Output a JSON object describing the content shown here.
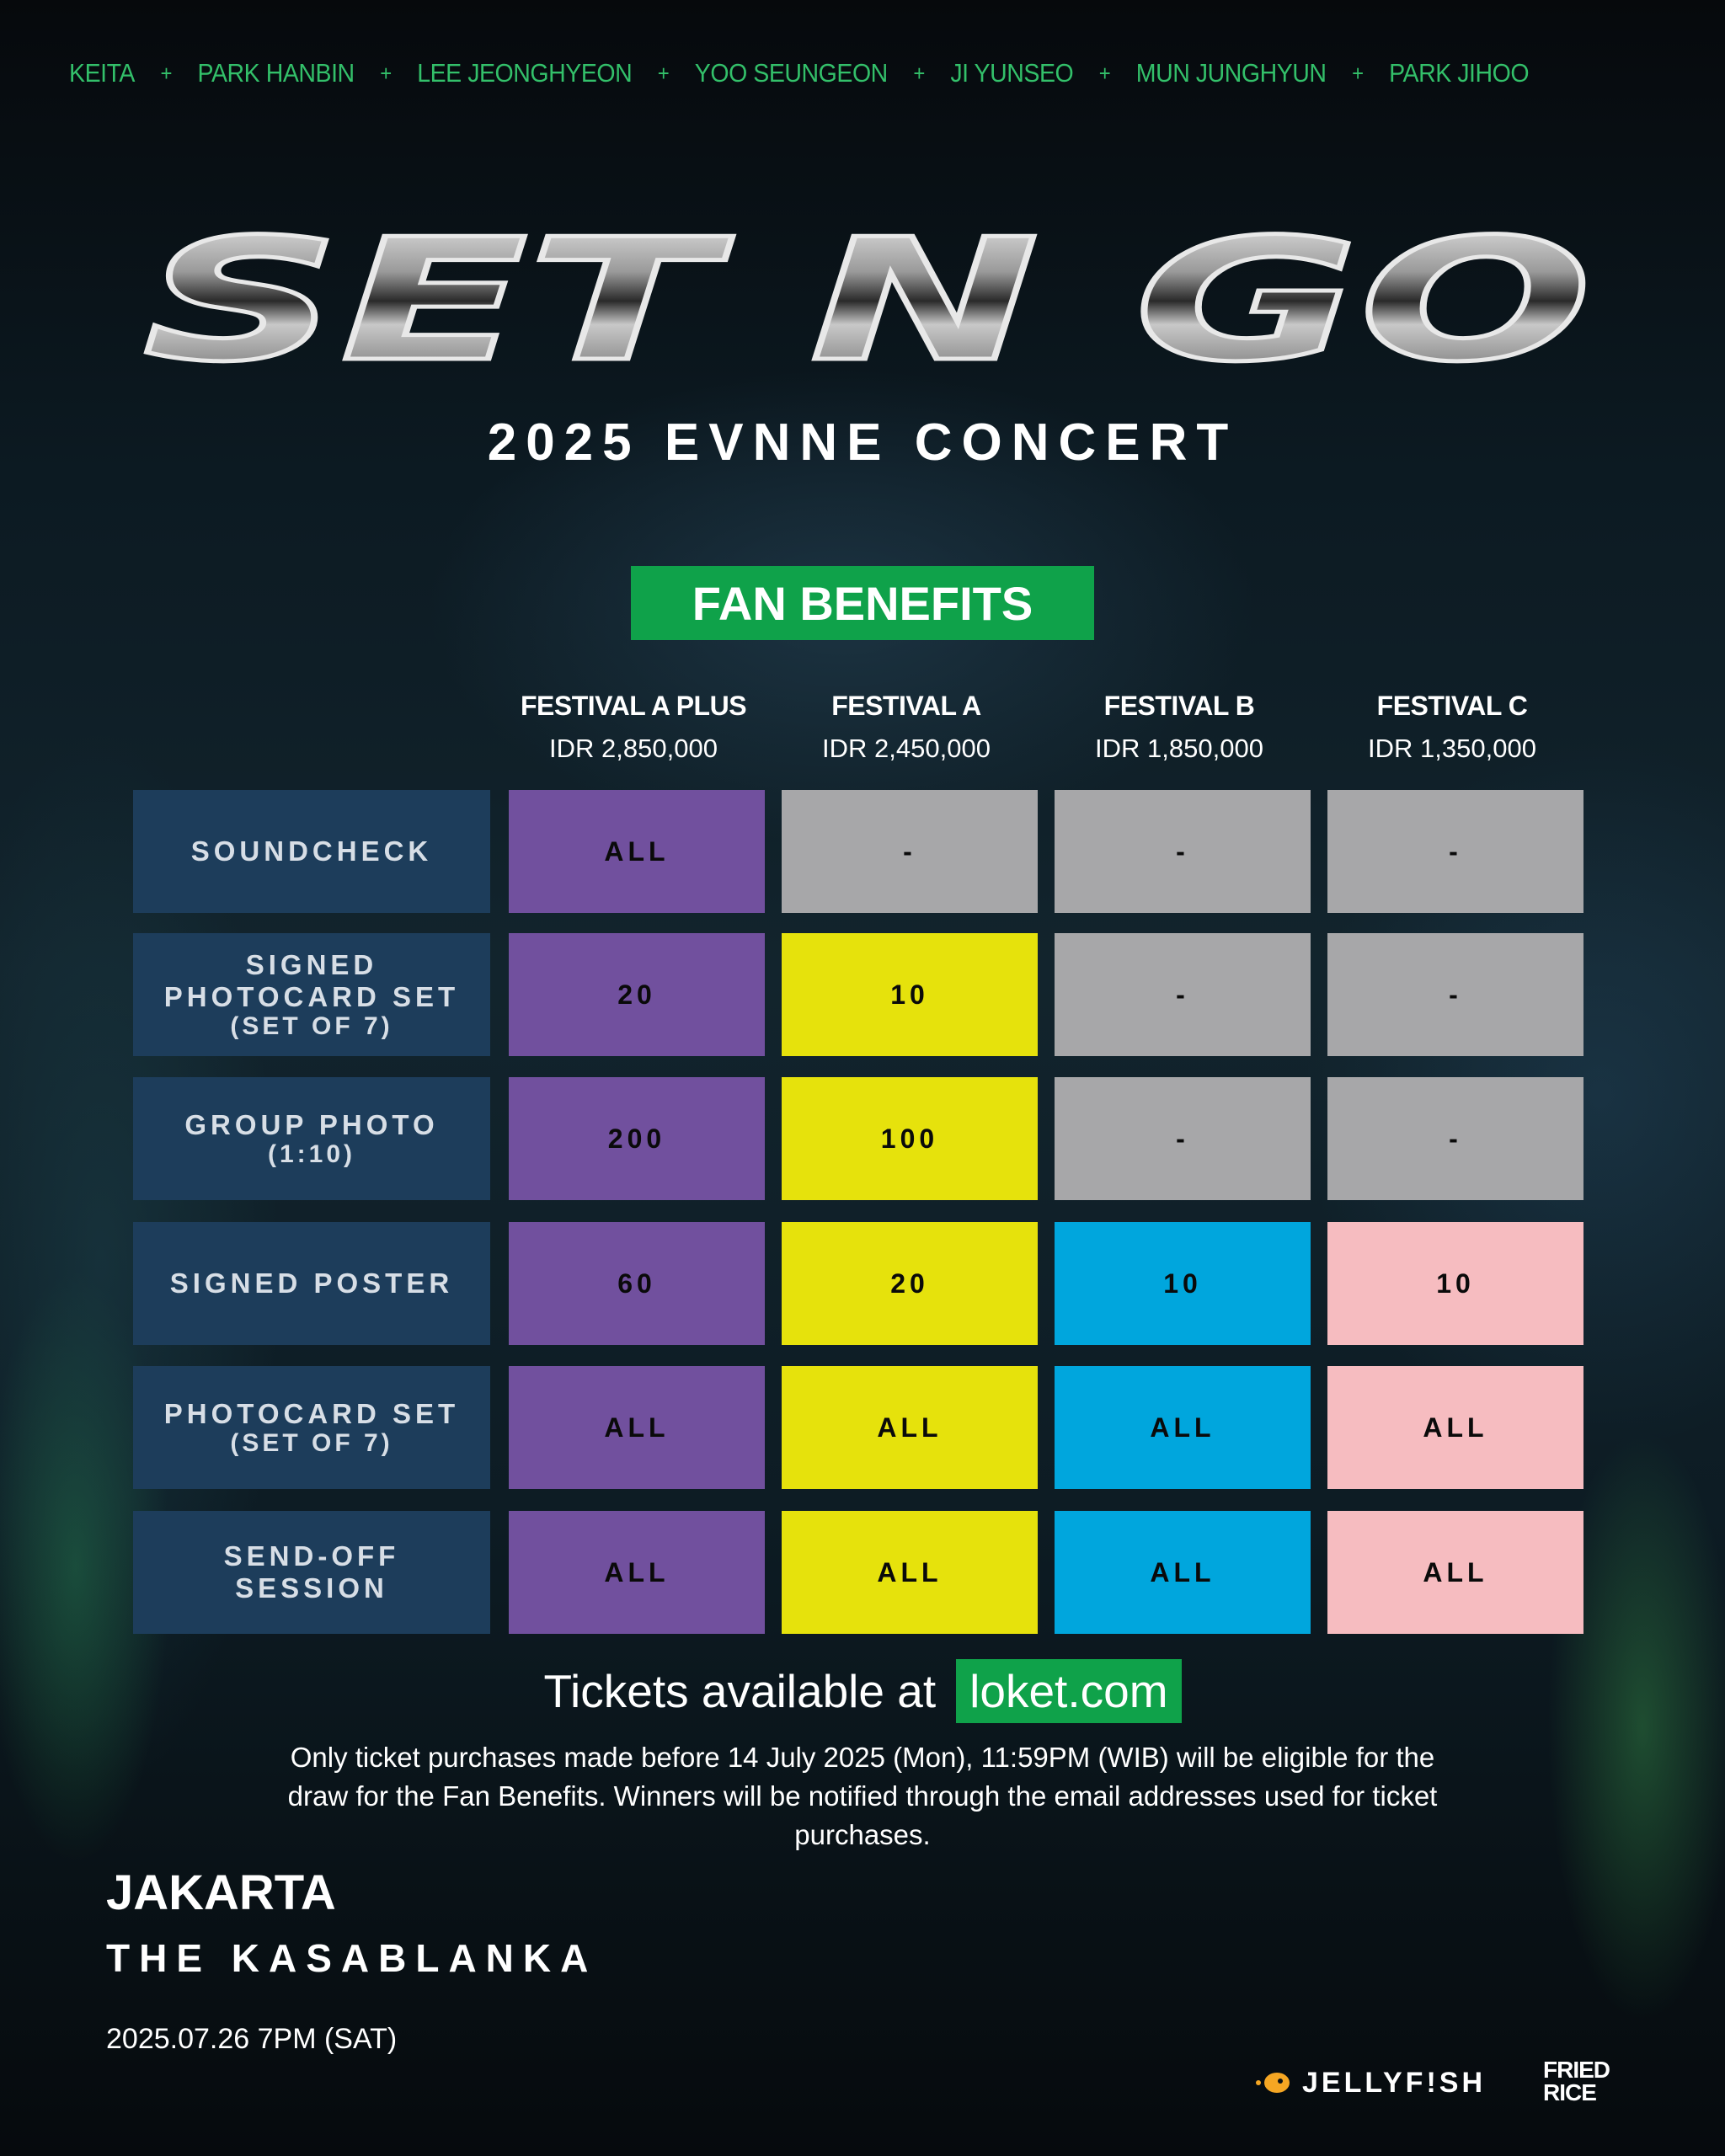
{
  "members": [
    "KEITA",
    "PARK HANBIN",
    "LEE JEONGHYEON",
    "YOO SEUNGEON",
    "JI YUNSEO",
    "MUN JUNGHYUN",
    "PARK JIHOO"
  ],
  "separator": "+",
  "logo_text": "SET N GO",
  "subtitle": "2025 EVNNE CONCERT",
  "badge": "FAN BENEFITS",
  "tiers": [
    {
      "name": "FESTIVAL A PLUS",
      "price": "IDR 2,850,000",
      "color": "#71509e"
    },
    {
      "name": "FESTIVAL A",
      "price": "IDR 2,450,000",
      "color": "#e6e20c"
    },
    {
      "name": "FESTIVAL B",
      "price": "IDR 1,850,000",
      "color": "#00a6dd"
    },
    {
      "name": "FESTIVAL C",
      "price": "IDR 1,350,000",
      "color": "#f6bcc0"
    }
  ],
  "benefits": [
    {
      "label": "SOUNDCHECK",
      "sub": "",
      "values": [
        "ALL",
        "-",
        "-",
        "-"
      ]
    },
    {
      "label": "SIGNED\nPHOTOCARD SET",
      "sub": "(SET OF 7)",
      "values": [
        "20",
        "10",
        "-",
        "-"
      ]
    },
    {
      "label": "GROUP PHOTO",
      "sub": "(1:10)",
      "values": [
        "200",
        "100",
        "-",
        "-"
      ]
    },
    {
      "label": "SIGNED POSTER",
      "sub": "",
      "values": [
        "60",
        "20",
        "10",
        "10"
      ]
    },
    {
      "label": "PHOTOCARD SET",
      "sub": "(SET OF 7)",
      "values": [
        "ALL",
        "ALL",
        "ALL",
        "ALL"
      ]
    },
    {
      "label": "SEND-OFF\nSESSION",
      "sub": "",
      "values": [
        "ALL",
        "ALL",
        "ALL",
        "ALL"
      ]
    }
  ],
  "empty_color": "#a7a7a9",
  "tickets": {
    "prefix": "Tickets available at",
    "site": "loket.com"
  },
  "note": "Only ticket purchases made before 14 July 2025 (Mon), 11:59PM (WIB) will be eligible for the draw for the Fan Benefits. Winners will be notified through the email addresses used for ticket purchases.",
  "city": "JAKARTA",
  "venue": "THE KASABLANKA",
  "date": "2025.07.26 7PM (SAT)",
  "logos": {
    "jellyfish": "JELLYF!SH",
    "fried_line1": "FRIED",
    "fried_line2": "RICE"
  },
  "icons": {
    "jellyfish": "jellyfish-logo-icon"
  }
}
